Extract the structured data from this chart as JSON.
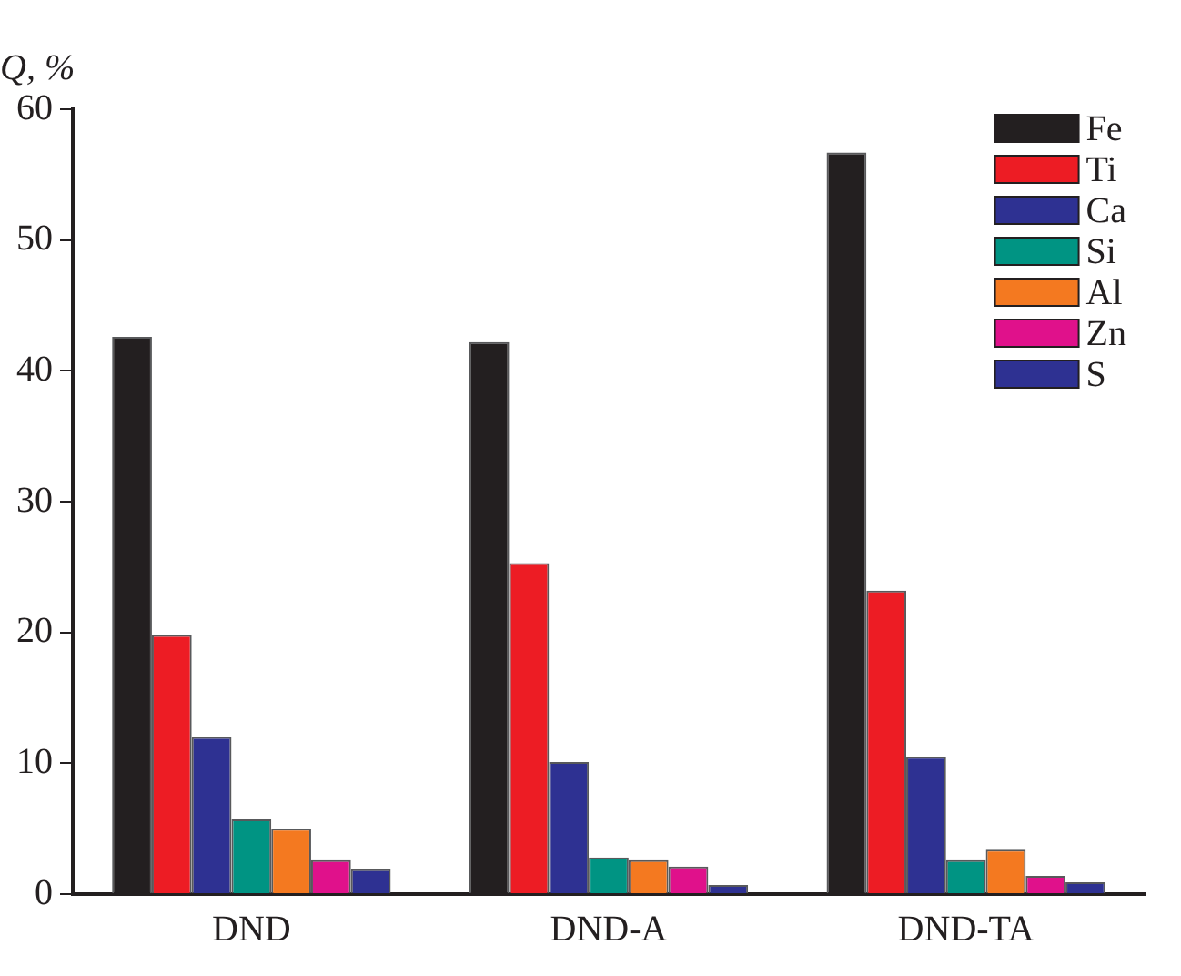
{
  "chart_data": {
    "type": "bar",
    "ylabel": "Q, %",
    "categories": [
      "DND",
      "DND-A",
      "DND-TA"
    ],
    "series": [
      {
        "name": "Fe",
        "color": "#231f20",
        "values": [
          42.6,
          42.2,
          56.7
        ]
      },
      {
        "name": "Ti",
        "color": "#ed1c24",
        "values": [
          19.8,
          25.3,
          23.2
        ]
      },
      {
        "name": "Ca",
        "color": "#2e3192",
        "values": [
          12.0,
          10.1,
          10.5
        ]
      },
      {
        "name": "Si",
        "color": "#009483",
        "values": [
          5.7,
          2.8,
          2.6
        ]
      },
      {
        "name": "Al",
        "color": "#f47920",
        "values": [
          5.0,
          2.6,
          3.4
        ]
      },
      {
        "name": "Zn",
        "color": "#e0118b",
        "values": [
          2.6,
          2.1,
          1.4
        ]
      },
      {
        "name": "S",
        "color": "#2e3192",
        "values": [
          1.9,
          0.7,
          0.9
        ]
      }
    ],
    "ylim": [
      0,
      60
    ],
    "yticks": [
      0,
      10,
      20,
      30,
      40,
      50,
      60
    ],
    "grid": false,
    "legend": "top right"
  }
}
